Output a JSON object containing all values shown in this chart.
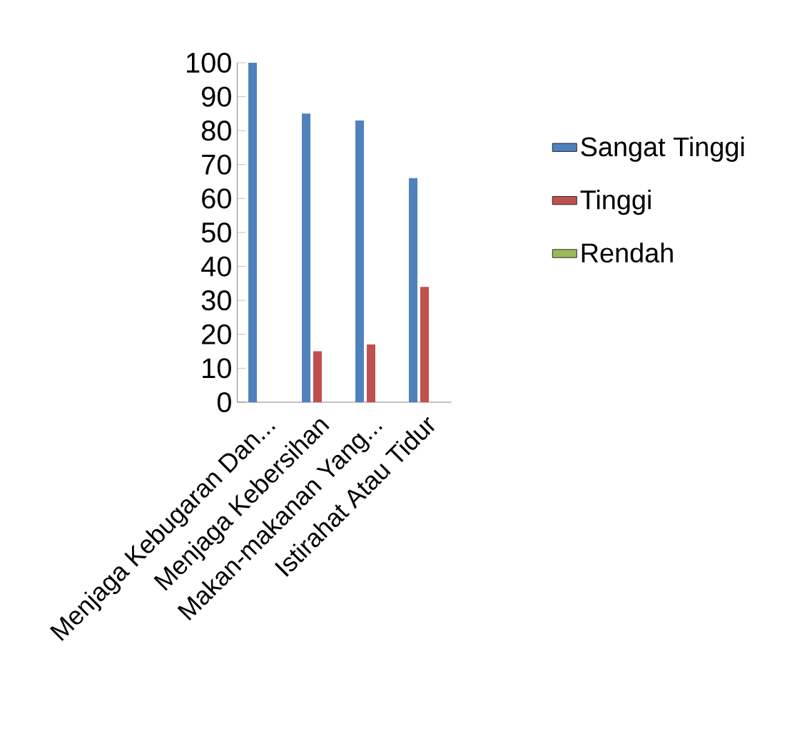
{
  "chart_data": {
    "type": "bar",
    "categories": [
      "Menjaga Kebugaran Dan...",
      "Menjaga Kebersihan",
      "Makan-makanan Yang...",
      "Istirahat Atau Tidur"
    ],
    "series": [
      {
        "name": "Sangat Tinggi",
        "color": "#4f81bd",
        "values": [
          100,
          85,
          83,
          66
        ]
      },
      {
        "name": "Tinggi",
        "color": "#c0504d",
        "values": [
          0,
          15,
          17,
          34
        ]
      },
      {
        "name": "Rendah",
        "color": "#9bbb59",
        "values": [
          0,
          0,
          0,
          0
        ]
      }
    ],
    "ylim": [
      0,
      100
    ],
    "yticks": [
      0,
      10,
      20,
      30,
      40,
      50,
      60,
      70,
      80,
      90,
      100
    ],
    "grid": false,
    "legend": "right"
  }
}
